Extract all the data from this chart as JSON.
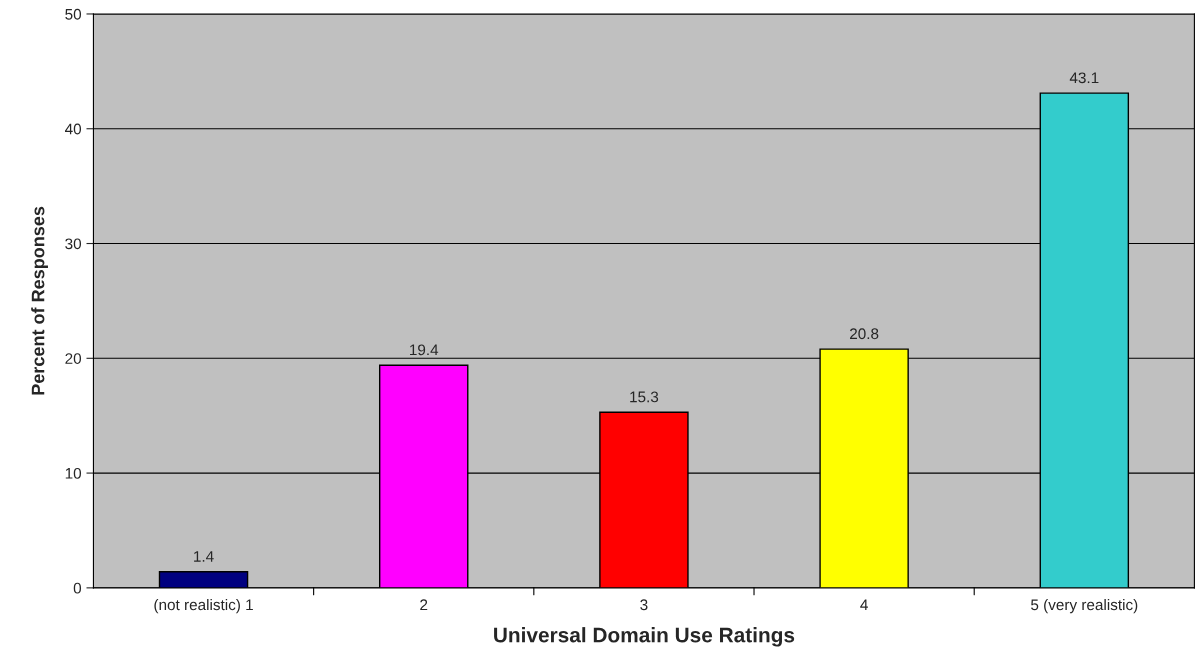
{
  "chart_data": {
    "type": "bar",
    "xlabel": "Universal Domain Use Ratings",
    "ylabel": "Percent of Responses",
    "categories": [
      "(not realistic) 1",
      "2",
      "3",
      "4",
      "5 (very realistic)"
    ],
    "values": [
      1.4,
      19.4,
      15.3,
      20.8,
      43.1
    ],
    "colors": [
      "#000080",
      "#ff00ff",
      "#ff0000",
      "#ffff00",
      "#33cccc"
    ],
    "ylim": [
      0,
      50
    ],
    "yticks": [
      0,
      10,
      20,
      30,
      40,
      50
    ],
    "grid": "y",
    "data_labels": true
  }
}
